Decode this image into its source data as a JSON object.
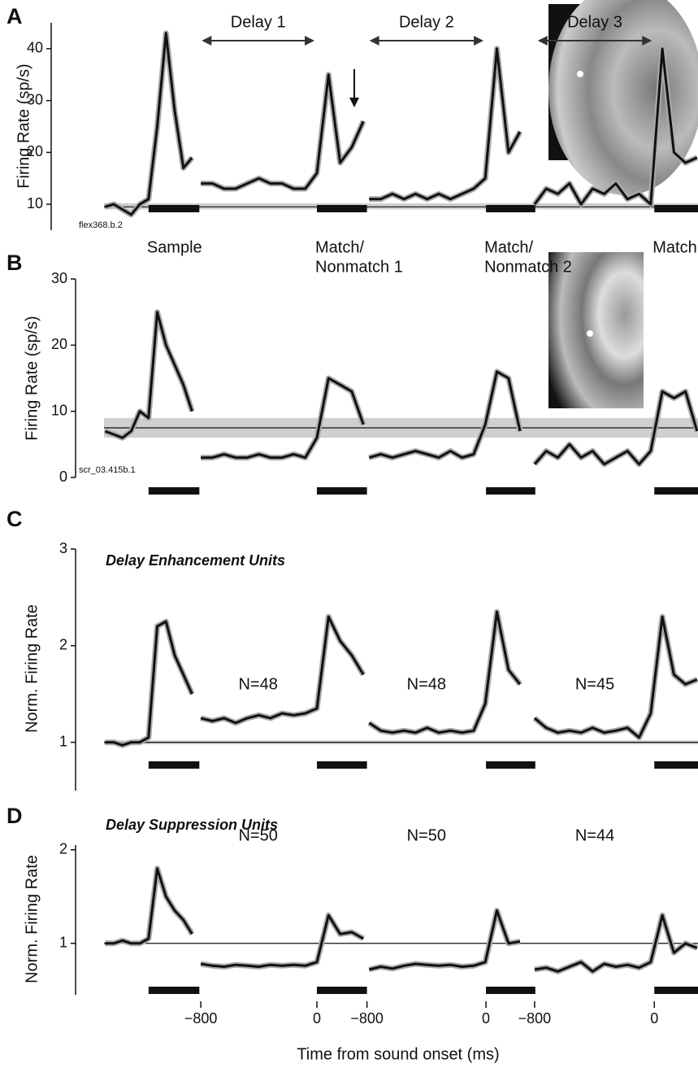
{
  "x_label": "Time from sound onset (ms)",
  "chart_data": [
    {
      "type": "line",
      "panel": "A",
      "y_label": "Firing Rate (sp/s)",
      "id_label": "flex368.b.2",
      "delays": [
        "Delay 1",
        "Delay 2",
        "Delay 3"
      ],
      "stimulus_labels": [
        [
          "Sample"
        ],
        [
          "Match/",
          "Nonmatch 1"
        ],
        [
          "Match/",
          "Nonmatch 2"
        ],
        [
          "Match"
        ]
      ],
      "xlim": [
        -1467,
        2626
      ],
      "ylim": [
        5,
        45
      ],
      "yticks": [
        10,
        20,
        30,
        40
      ],
      "baseline": 9.5,
      "baseline_band": [
        9,
        10.2
      ],
      "stimuli": [
        [
          -1160,
          -810
        ],
        [
          0,
          345
        ],
        [
          1165,
          1505
        ],
        [
          2325,
          2626
        ]
      ],
      "x": [
        -1460,
        -1400,
        -1340,
        -1280,
        -1220,
        -1160,
        -1100,
        -1040,
        -980,
        -920,
        -860,
        -830,
        -800,
        -720,
        -640,
        -560,
        -480,
        -400,
        -320,
        -240,
        -160,
        -80,
        0,
        80,
        160,
        240,
        320,
        336,
        360,
        440,
        520,
        600,
        680,
        760,
        840,
        920,
        1000,
        1080,
        1160,
        1240,
        1320,
        1400,
        1450,
        1500,
        1580,
        1660,
        1740,
        1820,
        1900,
        1980,
        2060,
        2140,
        2220,
        2300,
        2380,
        2460,
        2540,
        2620
      ],
      "series": [
        {
          "color": "#111111",
          "values": [
            9.5,
            10,
            9,
            8,
            10,
            11,
            25,
            43,
            28,
            17,
            19,
            null,
            14,
            14,
            13,
            13,
            14,
            15,
            14,
            14,
            13,
            13,
            16,
            35,
            18,
            21,
            26,
            null,
            11,
            11,
            12,
            11,
            12,
            11,
            12,
            11,
            12,
            13,
            15,
            40,
            20,
            24,
            null,
            10,
            13,
            12,
            14,
            10,
            13,
            12,
            14,
            11,
            12,
            10,
            40,
            20,
            18,
            19
          ]
        }
      ]
    },
    {
      "type": "line",
      "panel": "B",
      "y_label": "Firing Rate (sp/s)",
      "id_label": "scr_03.415b.1",
      "xlim": [
        -1467,
        2626
      ],
      "ylim": [
        0,
        30
      ],
      "yticks": [
        0,
        10,
        20,
        30
      ],
      "baseline": 7.5,
      "baseline_band": [
        6,
        9
      ],
      "stimuli": [
        [
          -1160,
          -810
        ],
        [
          0,
          345
        ],
        [
          1165,
          1505
        ],
        [
          2325,
          2626
        ]
      ],
      "x": [
        -1460,
        -1400,
        -1340,
        -1280,
        -1220,
        -1160,
        -1100,
        -1040,
        -980,
        -920,
        -860,
        -830,
        -800,
        -720,
        -640,
        -560,
        -480,
        -400,
        -320,
        -240,
        -160,
        -80,
        0,
        80,
        160,
        240,
        320,
        336,
        360,
        440,
        520,
        600,
        680,
        760,
        840,
        920,
        1000,
        1080,
        1160,
        1240,
        1320,
        1400,
        1450,
        1500,
        1580,
        1660,
        1740,
        1820,
        1900,
        1980,
        2060,
        2140,
        2220,
        2300,
        2380,
        2460,
        2540,
        2620
      ],
      "series": [
        {
          "color": "#111111",
          "values": [
            7,
            6.5,
            6,
            7,
            10,
            9,
            25,
            20,
            17,
            14,
            10,
            null,
            3,
            3,
            3.5,
            3,
            3,
            3.5,
            3,
            3,
            3.5,
            3,
            6,
            15,
            14,
            13,
            8,
            null,
            3,
            3.5,
            3,
            3.5,
            4,
            3.5,
            3,
            4,
            3,
            3.5,
            8,
            16,
            15,
            7,
            null,
            2,
            4,
            3,
            5,
            3,
            4,
            2,
            3,
            4,
            2,
            4,
            13,
            12,
            13,
            7
          ]
        }
      ]
    },
    {
      "type": "line",
      "panel": "C",
      "y_label": "Norm. Firing Rate",
      "subtitle": "Delay Enhancement Units",
      "n_labels": [
        "N=48",
        "N=48",
        "N=45"
      ],
      "xlim": [
        -1467,
        2626
      ],
      "ylim": [
        0.5,
        3
      ],
      "yticks": [
        1,
        2,
        3
      ],
      "baseline": 1,
      "baseline_band": [
        0.98,
        1.02
      ],
      "stimuli": [
        [
          -1160,
          -810
        ],
        [
          0,
          345
        ],
        [
          1165,
          1505
        ],
        [
          2325,
          2626
        ]
      ],
      "x": [
        -1460,
        -1400,
        -1340,
        -1280,
        -1220,
        -1160,
        -1100,
        -1040,
        -980,
        -920,
        -860,
        -830,
        -800,
        -720,
        -640,
        -560,
        -480,
        -400,
        -320,
        -240,
        -160,
        -80,
        0,
        80,
        160,
        240,
        320,
        336,
        360,
        440,
        520,
        600,
        680,
        760,
        840,
        920,
        1000,
        1080,
        1160,
        1240,
        1320,
        1400,
        1450,
        1500,
        1580,
        1660,
        1740,
        1820,
        1900,
        1980,
        2060,
        2140,
        2220,
        2300,
        2380,
        2460,
        2540,
        2620
      ],
      "series": [
        {
          "color": "#111111",
          "values": [
            1,
            1,
            0.97,
            1,
            1,
            1.05,
            2.2,
            2.25,
            1.9,
            1.7,
            1.5,
            null,
            1.25,
            1.22,
            1.25,
            1.2,
            1.25,
            1.28,
            1.25,
            1.3,
            1.28,
            1.3,
            1.35,
            2.3,
            2.05,
            1.9,
            1.7,
            null,
            1.2,
            1.12,
            1.1,
            1.12,
            1.1,
            1.15,
            1.1,
            1.12,
            1.1,
            1.12,
            1.4,
            2.35,
            1.75,
            1.6,
            null,
            1.25,
            1.15,
            1.1,
            1.12,
            1.1,
            1.15,
            1.1,
            1.12,
            1.15,
            1.05,
            1.3,
            2.3,
            1.7,
            1.6,
            1.65
          ]
        }
      ]
    },
    {
      "type": "line",
      "panel": "D",
      "y_label": "Norm. Firing Rate",
      "subtitle": "Delay Suppression Units",
      "n_labels": [
        "N=50",
        "N=50",
        "N=44"
      ],
      "xlim": [
        -1467,
        2626
      ],
      "ylim": [
        0.45,
        2.05
      ],
      "yticks": [
        1,
        2
      ],
      "xticks": [
        {
          "value": -800,
          "label": "−800"
        },
        0,
        {
          "value": 345,
          "label": "−800"
        },
        {
          "value": 1165,
          "label": "0"
        },
        {
          "value": 1500,
          "label": "−800"
        },
        {
          "value": 2325,
          "label": "0"
        }
      ],
      "baseline": 1,
      "stimuli": [
        [
          -1160,
          -810
        ],
        [
          0,
          345
        ],
        [
          1165,
          1505
        ],
        [
          2325,
          2626
        ]
      ],
      "x": [
        -1460,
        -1400,
        -1340,
        -1280,
        -1220,
        -1160,
        -1100,
        -1040,
        -980,
        -920,
        -860,
        -830,
        -800,
        -720,
        -640,
        -560,
        -480,
        -400,
        -320,
        -240,
        -160,
        -80,
        0,
        80,
        160,
        240,
        320,
        336,
        360,
        440,
        520,
        600,
        680,
        760,
        840,
        920,
        1000,
        1080,
        1160,
        1240,
        1320,
        1400,
        1450,
        1500,
        1580,
        1660,
        1740,
        1820,
        1900,
        1980,
        2060,
        2140,
        2220,
        2300,
        2380,
        2460,
        2540,
        2620
      ],
      "series": [
        {
          "color": "#111111",
          "values": [
            1,
            1,
            1.03,
            1,
            1,
            1.05,
            1.8,
            1.5,
            1.35,
            1.25,
            1.1,
            null,
            0.78,
            0.76,
            0.75,
            0.77,
            0.76,
            0.75,
            0.77,
            0.76,
            0.77,
            0.76,
            0.8,
            1.3,
            1.1,
            1.12,
            1.05,
            null,
            0.72,
            0.75,
            0.73,
            0.76,
            0.78,
            0.77,
            0.76,
            0.77,
            0.75,
            0.76,
            0.8,
            1.35,
            1.0,
            1.02,
            null,
            0.72,
            0.74,
            0.7,
            0.75,
            0.8,
            0.7,
            0.78,
            0.75,
            0.77,
            0.74,
            0.8,
            1.3,
            0.9,
            1.0,
            0.95
          ]
        }
      ]
    }
  ]
}
